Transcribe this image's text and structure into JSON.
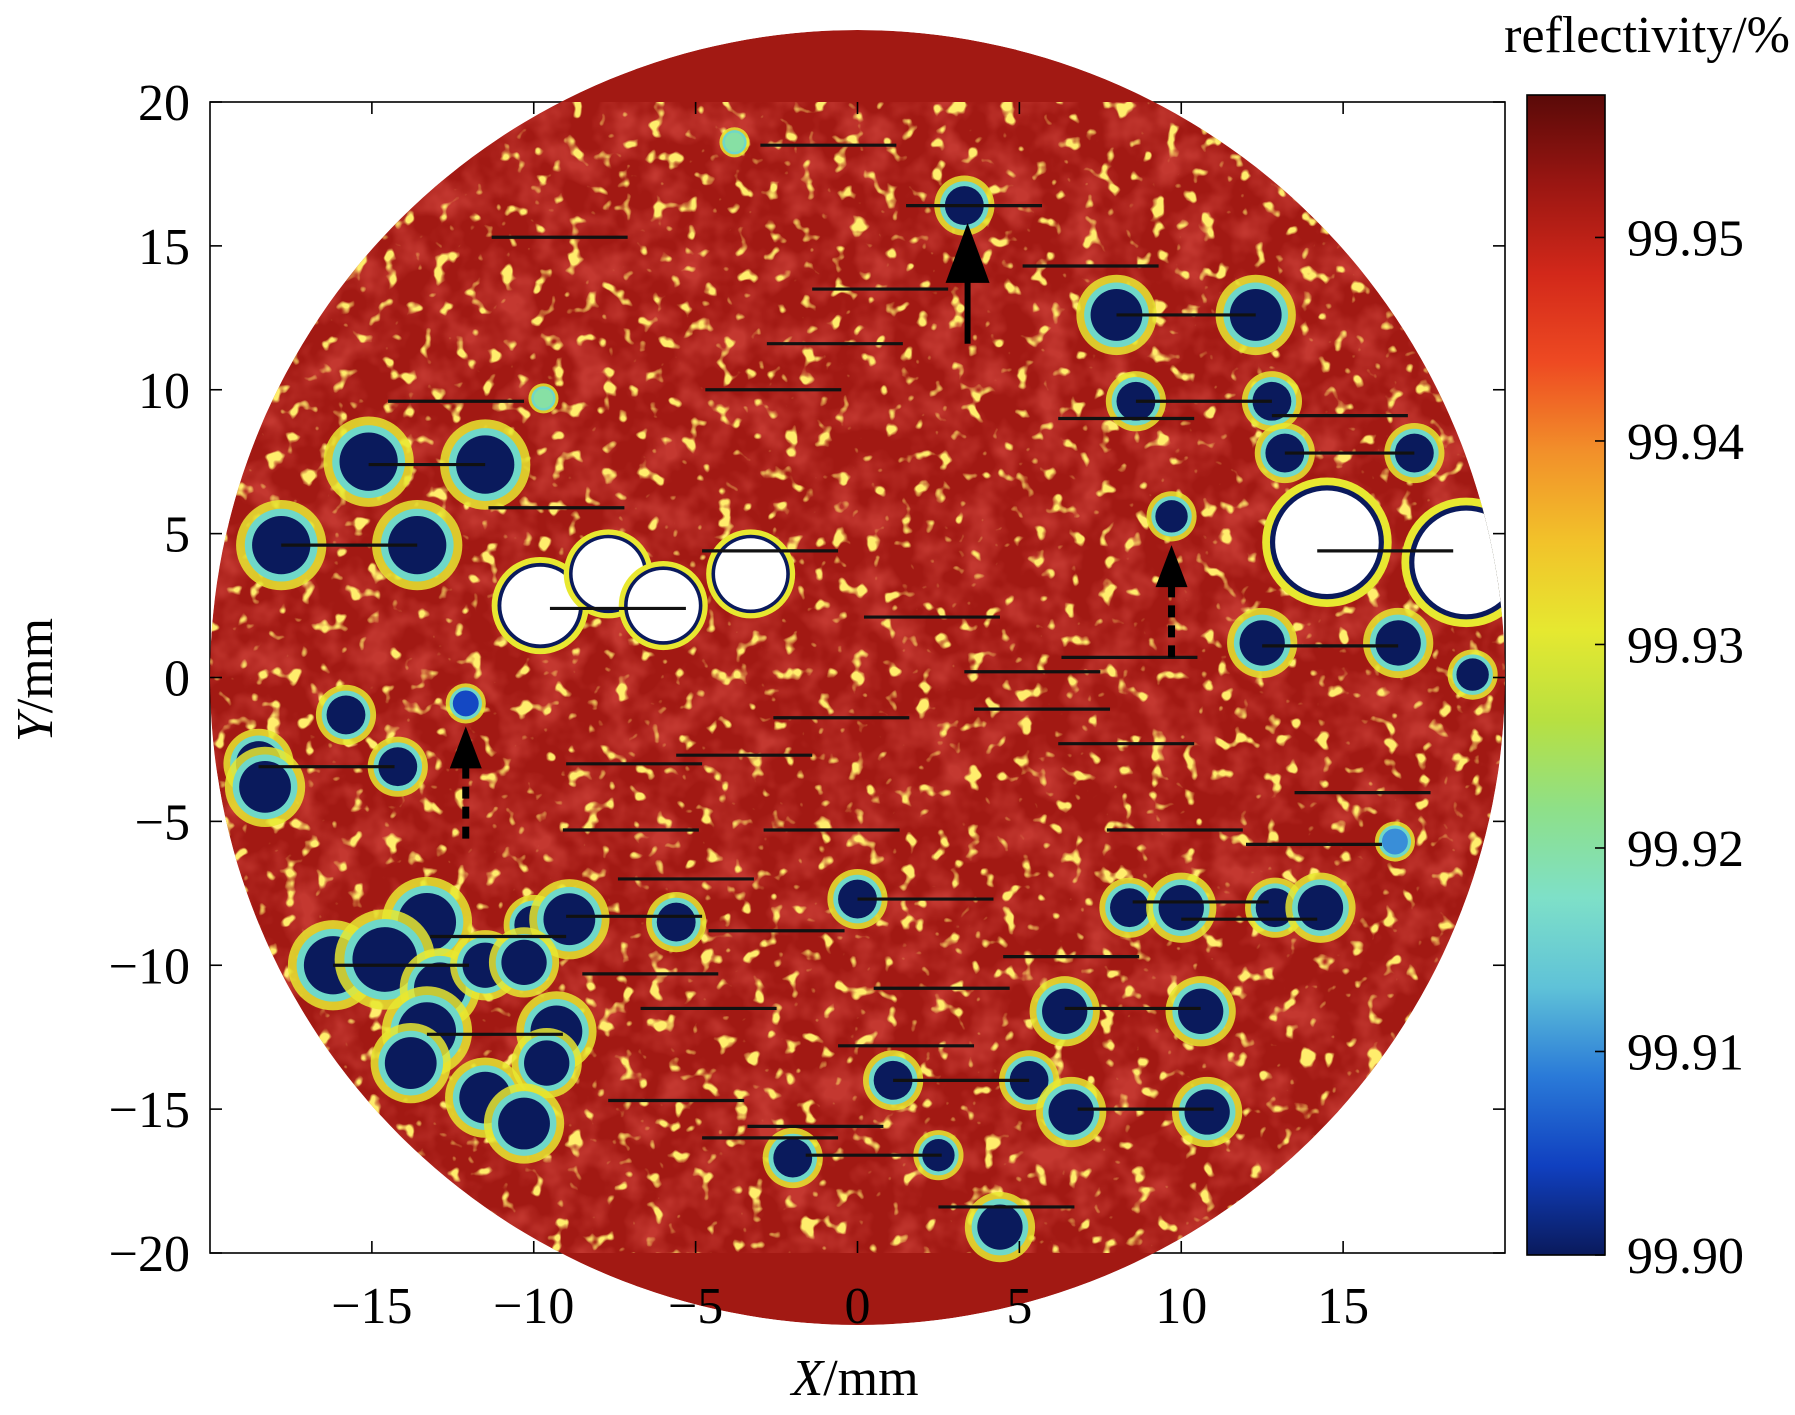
{
  "chart_data": {
    "type": "heatmap",
    "title": "",
    "xlabel": "X/mm",
    "ylabel": "Y/mm",
    "xlim": [
      -20,
      20
    ],
    "ylim": [
      -20,
      20
    ],
    "xticks": [
      -15,
      -10,
      -5,
      0,
      5,
      10,
      15
    ],
    "yticks": [
      20,
      15,
      10,
      5,
      0,
      -5,
      -10,
      -15,
      -20
    ],
    "xtick_labels": [
      "−15",
      "−10",
      "−5",
      "0",
      "5",
      "10",
      "15"
    ],
    "ytick_labels": [
      "20",
      "15",
      "10",
      "5",
      "0",
      "−5",
      "−10",
      "−15",
      "−20"
    ],
    "aperture_radius_mm": 20,
    "colorbar": {
      "title": "reflectivity/%",
      "range": [
        99.9,
        99.957
      ],
      "ticks": [
        99.95,
        99.94,
        99.93,
        99.92,
        99.91,
        99.9
      ],
      "tick_labels": [
        "99.95",
        "99.94",
        "99.93",
        "99.92",
        "99.91",
        "99.90"
      ],
      "colors": [
        "#0a1a5c",
        "#1040c0",
        "#2a7ad8",
        "#5fc2d8",
        "#7ee0c8",
        "#8ee088",
        "#b8e040",
        "#e6e830",
        "#f2c22a",
        "#f2902a",
        "#ee4a22",
        "#d2281a",
        "#9a1612",
        "#5a0a08"
      ]
    },
    "background_value": 99.952,
    "defects": [
      {
        "x": -15.1,
        "y": 7.5,
        "r": 0.9,
        "v": 99.9
      },
      {
        "x": -11.5,
        "y": 7.4,
        "r": 0.9,
        "v": 99.9
      },
      {
        "x": -17.8,
        "y": 4.6,
        "r": 0.9,
        "v": 99.9
      },
      {
        "x": -13.6,
        "y": 4.6,
        "r": 0.9,
        "v": 99.9
      },
      {
        "x": -15.8,
        "y": -1.3,
        "r": 0.6,
        "v": 99.9
      },
      {
        "x": -18.5,
        "y": -3.0,
        "r": 0.7,
        "v": 99.9
      },
      {
        "x": -14.2,
        "y": -3.1,
        "r": 0.6,
        "v": 99.9
      },
      {
        "x": -18.3,
        "y": -3.8,
        "r": 0.8,
        "v": 99.9
      },
      {
        "x": -13.3,
        "y": -8.5,
        "r": 0.9,
        "v": 99.9
      },
      {
        "x": -10.0,
        "y": -8.6,
        "r": 0.6,
        "v": 99.9
      },
      {
        "x": -8.9,
        "y": -8.4,
        "r": 0.8,
        "v": 99.9
      },
      {
        "x": -5.6,
        "y": -8.5,
        "r": 0.6,
        "v": 99.9
      },
      {
        "x": -16.2,
        "y": -10.0,
        "r": 0.9,
        "v": 99.9
      },
      {
        "x": -14.6,
        "y": -9.8,
        "r": 1.0,
        "v": 99.9
      },
      {
        "x": -12.9,
        "y": -10.8,
        "r": 0.8,
        "v": 99.9
      },
      {
        "x": -11.5,
        "y": -10.0,
        "r": 0.7,
        "v": 99.9
      },
      {
        "x": -10.3,
        "y": -9.9,
        "r": 0.7,
        "v": 99.9
      },
      {
        "x": -13.3,
        "y": -12.3,
        "r": 0.9,
        "v": 99.9
      },
      {
        "x": -9.3,
        "y": -12.3,
        "r": 0.8,
        "v": 99.9
      },
      {
        "x": -13.8,
        "y": -13.4,
        "r": 0.8,
        "v": 99.9
      },
      {
        "x": -9.6,
        "y": -13.4,
        "r": 0.7,
        "v": 99.9
      },
      {
        "x": -11.5,
        "y": -14.6,
        "r": 0.8,
        "v": 99.9
      },
      {
        "x": -10.3,
        "y": -15.5,
        "r": 0.8,
        "v": 99.9
      },
      {
        "x": 3.3,
        "y": 16.4,
        "r": 0.6,
        "v": 99.9
      },
      {
        "x": 8.0,
        "y": 12.6,
        "r": 0.8,
        "v": 99.9
      },
      {
        "x": 12.3,
        "y": 12.6,
        "r": 0.8,
        "v": 99.9
      },
      {
        "x": 8.6,
        "y": 9.6,
        "r": 0.6,
        "v": 99.9
      },
      {
        "x": 12.8,
        "y": 9.6,
        "r": 0.6,
        "v": 99.9
      },
      {
        "x": 13.2,
        "y": 7.8,
        "r": 0.6,
        "v": 99.9
      },
      {
        "x": 17.2,
        "y": 7.8,
        "r": 0.6,
        "v": 99.9
      },
      {
        "x": 9.7,
        "y": 5.6,
        "r": 0.5,
        "v": 99.9
      },
      {
        "x": 12.5,
        "y": 1.2,
        "r": 0.7,
        "v": 99.9
      },
      {
        "x": 16.7,
        "y": 1.2,
        "r": 0.7,
        "v": 99.9
      },
      {
        "x": 19.0,
        "y": 0.1,
        "r": 0.5,
        "v": 99.9
      },
      {
        "x": 0.0,
        "y": -7.7,
        "r": 0.6,
        "v": 99.9
      },
      {
        "x": 8.4,
        "y": -8.0,
        "r": 0.6,
        "v": 99.9
      },
      {
        "x": 10.0,
        "y": -8.0,
        "r": 0.7,
        "v": 99.9
      },
      {
        "x": 12.9,
        "y": -8.0,
        "r": 0.6,
        "v": 99.9
      },
      {
        "x": 14.3,
        "y": -8.0,
        "r": 0.7,
        "v": 99.9
      },
      {
        "x": 6.4,
        "y": -11.6,
        "r": 0.7,
        "v": 99.9
      },
      {
        "x": 10.6,
        "y": -11.6,
        "r": 0.7,
        "v": 99.9
      },
      {
        "x": 1.1,
        "y": -14.0,
        "r": 0.6,
        "v": 99.9
      },
      {
        "x": 5.3,
        "y": -14.0,
        "r": 0.6,
        "v": 99.9
      },
      {
        "x": 6.6,
        "y": -15.1,
        "r": 0.7,
        "v": 99.9
      },
      {
        "x": 10.8,
        "y": -15.1,
        "r": 0.7,
        "v": 99.9
      },
      {
        "x": -2.0,
        "y": -16.7,
        "r": 0.6,
        "v": 99.9
      },
      {
        "x": 2.5,
        "y": -16.6,
        "r": 0.5,
        "v": 99.9
      },
      {
        "x": 4.4,
        "y": -19.1,
        "r": 0.7,
        "v": 99.9
      },
      {
        "x": -12.1,
        "y": -0.9,
        "r": 0.4,
        "v": 99.905
      },
      {
        "x": -3.8,
        "y": 18.6,
        "r": 0.3,
        "v": 99.92
      },
      {
        "x": -9.7,
        "y": 9.7,
        "r": 0.3,
        "v": 99.92
      },
      {
        "x": 16.6,
        "y": -5.7,
        "r": 0.4,
        "v": 99.91
      }
    ],
    "damage_sites": [
      {
        "x": -9.8,
        "y": 2.5,
        "r": 1.2
      },
      {
        "x": -7.7,
        "y": 3.6,
        "r": 1.1
      },
      {
        "x": -6.0,
        "y": 2.5,
        "r": 1.1
      },
      {
        "x": -3.3,
        "y": 3.6,
        "r": 1.1
      },
      {
        "x": 14.5,
        "y": 4.7,
        "r": 1.6
      },
      {
        "x": 18.8,
        "y": 4.0,
        "r": 1.6
      }
    ],
    "scan_lines": [
      {
        "x1": -3.0,
        "x2": 1.2,
        "y": 18.5
      },
      {
        "x1": 1.5,
        "x2": 5.7,
        "y": 16.4
      },
      {
        "x1": -11.3,
        "x2": -7.1,
        "y": 15.3
      },
      {
        "x1": 5.1,
        "x2": 9.3,
        "y": 14.3
      },
      {
        "x1": -1.4,
        "x2": 2.8,
        "y": 13.5
      },
      {
        "x1": 8.0,
        "x2": 12.3,
        "y": 12.6
      },
      {
        "x1": -2.8,
        "x2": 1.4,
        "y": 11.6
      },
      {
        "x1": -4.7,
        "x2": -0.5,
        "y": 10.0
      },
      {
        "x1": -14.5,
        "x2": -10.3,
        "y": 9.6
      },
      {
        "x1": 8.6,
        "x2": 12.8,
        "y": 9.6
      },
      {
        "x1": 12.8,
        "x2": 17.0,
        "y": 9.1
      },
      {
        "x1": 6.2,
        "x2": 10.4,
        "y": 9.0
      },
      {
        "x1": 13.2,
        "x2": 17.2,
        "y": 7.8
      },
      {
        "x1": -15.1,
        "x2": -11.5,
        "y": 7.4
      },
      {
        "x1": -11.4,
        "x2": -7.2,
        "y": 5.9
      },
      {
        "x1": -17.8,
        "x2": -13.6,
        "y": 4.6
      },
      {
        "x1": -4.8,
        "x2": -0.6,
        "y": 4.4
      },
      {
        "x1": 14.2,
        "x2": 18.4,
        "y": 4.4
      },
      {
        "x1": -9.5,
        "x2": -5.3,
        "y": 2.4
      },
      {
        "x1": 0.2,
        "x2": 4.4,
        "y": 2.1
      },
      {
        "x1": 12.5,
        "x2": 16.7,
        "y": 1.1
      },
      {
        "x1": 6.3,
        "x2": 10.5,
        "y": 0.7
      },
      {
        "x1": 3.3,
        "x2": 7.5,
        "y": 0.2
      },
      {
        "x1": 3.6,
        "x2": 7.8,
        "y": -1.1
      },
      {
        "x1": -2.6,
        "x2": 1.6,
        "y": -1.4
      },
      {
        "x1": 6.2,
        "x2": 10.4,
        "y": -2.3
      },
      {
        "x1": -5.6,
        "x2": -1.4,
        "y": -2.7
      },
      {
        "x1": -18.5,
        "x2": -14.3,
        "y": -3.1
      },
      {
        "x1": -9.0,
        "x2": -4.8,
        "y": -3.0
      },
      {
        "x1": 13.5,
        "x2": 17.7,
        "y": -4.0
      },
      {
        "x1": -9.1,
        "x2": -4.9,
        "y": -5.3
      },
      {
        "x1": -2.9,
        "x2": 1.3,
        "y": -5.3
      },
      {
        "x1": 7.7,
        "x2": 11.9,
        "y": -5.3
      },
      {
        "x1": 12.0,
        "x2": 16.2,
        "y": -5.8
      },
      {
        "x1": -7.4,
        "x2": -3.2,
        "y": -7.0
      },
      {
        "x1": 0.0,
        "x2": 4.2,
        "y": -7.7
      },
      {
        "x1": 8.5,
        "x2": 12.7,
        "y": -7.8
      },
      {
        "x1": -9.0,
        "x2": -4.8,
        "y": -8.3
      },
      {
        "x1": 10.0,
        "x2": 14.2,
        "y": -8.4
      },
      {
        "x1": -4.6,
        "x2": -0.4,
        "y": -8.8
      },
      {
        "x1": -13.2,
        "x2": -9.0,
        "y": -9.0
      },
      {
        "x1": 4.5,
        "x2": 8.7,
        "y": -9.7
      },
      {
        "x1": -16.2,
        "x2": -12.0,
        "y": -10.0
      },
      {
        "x1": -8.5,
        "x2": -4.3,
        "y": -10.3
      },
      {
        "x1": 0.5,
        "x2": 4.7,
        "y": -10.8
      },
      {
        "x1": -6.7,
        "x2": -2.5,
        "y": -11.5
      },
      {
        "x1": 6.4,
        "x2": 10.6,
        "y": -11.5
      },
      {
        "x1": -13.3,
        "x2": -9.1,
        "y": -12.4
      },
      {
        "x1": -0.6,
        "x2": 3.6,
        "y": -12.8
      },
      {
        "x1": 1.1,
        "x2": 5.3,
        "y": -14.0
      },
      {
        "x1": -7.7,
        "x2": -3.5,
        "y": -14.7
      },
      {
        "x1": 6.8,
        "x2": 11.0,
        "y": -15.0
      },
      {
        "x1": -3.4,
        "x2": 0.8,
        "y": -15.6
      },
      {
        "x1": -4.8,
        "x2": -0.6,
        "y": -16.0
      },
      {
        "x1": -1.6,
        "x2": 2.6,
        "y": -16.6
      },
      {
        "x1": 2.5,
        "x2": 6.7,
        "y": -18.4
      }
    ],
    "arrows": [
      {
        "x": 3.4,
        "from_y": 11.6,
        "to_y": 15.8,
        "style": "solid"
      },
      {
        "x": 9.7,
        "from_y": 0.7,
        "to_y": 4.6,
        "style": "dashed"
      },
      {
        "x": -12.1,
        "from_y": -5.6,
        "to_y": -1.7,
        "style": "dashed"
      }
    ],
    "grid": false,
    "legend": "colorbar-right"
  }
}
